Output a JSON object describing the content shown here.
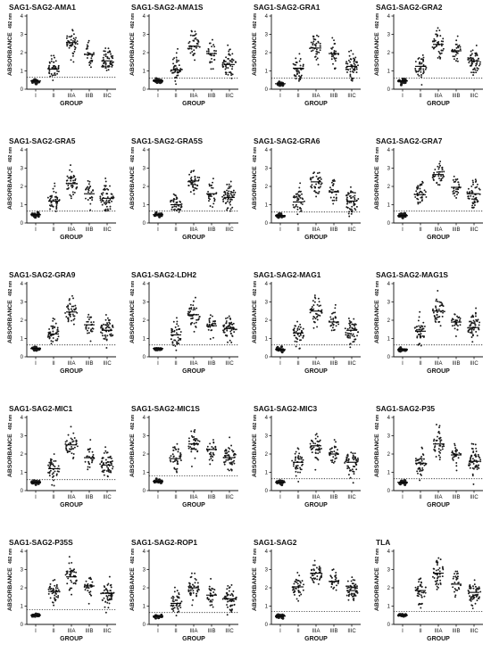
{
  "figure": {
    "y_axis_label": "ABSORBANCE",
    "y_axis_unit": "492 nm",
    "x_axis_label": "GROUP",
    "groups": [
      "I",
      "II",
      "IIIA",
      "IIIB",
      "IIIC"
    ],
    "y_ticks": [
      "0",
      "1",
      "2",
      "3",
      "4"
    ]
  },
  "chart_data": [
    {
      "type": "scatter",
      "title": "SAG1-SAG2-AMA1",
      "xlabel": "GROUP",
      "ylabel": "ABSORBANCE 492 nm",
      "ylim": [
        0,
        4
      ],
      "cutoff": 0.65,
      "categories": [
        "I",
        "II",
        "IIIA",
        "IIIB",
        "IIIC"
      ],
      "group_means": [
        0.45,
        1.1,
        2.55,
        1.9,
        1.55
      ]
    },
    {
      "type": "scatter",
      "title": "SAG1-SAG2-AMA1S",
      "xlabel": "GROUP",
      "ylabel": "ABSORBANCE 492 nm",
      "ylim": [
        0,
        4
      ],
      "cutoff": 0.6,
      "categories": [
        "I",
        "II",
        "IIIA",
        "IIIB",
        "IIIC"
      ],
      "group_means": [
        0.45,
        1.05,
        2.35,
        1.95,
        1.35
      ]
    },
    {
      "type": "scatter",
      "title": "SAG1-SAG2-GRA1",
      "xlabel": "GROUP",
      "ylabel": "ABSORBANCE 492 nm",
      "ylim": [
        0,
        4
      ],
      "cutoff": 0.6,
      "categories": [
        "I",
        "II",
        "IIIA",
        "IIIB",
        "IIIC"
      ],
      "group_means": [
        0.3,
        1.15,
        2.25,
        1.95,
        1.25
      ]
    },
    {
      "type": "scatter",
      "title": "SAG1-SAG2-GRA2",
      "xlabel": "GROUP",
      "ylabel": "ABSORBANCE 492 nm",
      "ylim": [
        0,
        4
      ],
      "cutoff": 0.6,
      "categories": [
        "I",
        "II",
        "IIIA",
        "IIIB",
        "IIIC"
      ],
      "group_means": [
        0.45,
        1.25,
        2.45,
        2.1,
        1.55
      ]
    },
    {
      "type": "scatter",
      "title": "SAG1-SAG2-GRA5",
      "xlabel": "GROUP",
      "ylabel": "ABSORBANCE 492 nm",
      "ylim": [
        0,
        4
      ],
      "cutoff": 0.65,
      "categories": [
        "I",
        "II",
        "IIIA",
        "IIIB",
        "IIIC"
      ],
      "group_means": [
        0.45,
        1.2,
        2.15,
        1.6,
        1.35
      ]
    },
    {
      "type": "scatter",
      "title": "SAG1-SAG2-GRA5S",
      "xlabel": "GROUP",
      "ylabel": "ABSORBANCE 492 nm",
      "ylim": [
        0,
        4
      ],
      "cutoff": 0.65,
      "categories": [
        "I",
        "II",
        "IIIA",
        "IIIB",
        "IIIC"
      ],
      "group_means": [
        0.45,
        1.0,
        2.3,
        1.6,
        1.4
      ]
    },
    {
      "type": "scatter",
      "title": "SAG1-SAG2-GRA6",
      "xlabel": "GROUP",
      "ylabel": "ABSORBANCE 492 nm",
      "ylim": [
        0,
        4
      ],
      "cutoff": 0.6,
      "categories": [
        "I",
        "II",
        "IIIA",
        "IIIB",
        "IIIC"
      ],
      "group_means": [
        0.4,
        1.15,
        2.25,
        1.7,
        1.2
      ]
    },
    {
      "type": "scatter",
      "title": "SAG1-SAG2-GRA7",
      "xlabel": "GROUP",
      "ylabel": "ABSORBANCE 492 nm",
      "ylim": [
        0,
        4
      ],
      "cutoff": 0.65,
      "categories": [
        "I",
        "II",
        "IIIA",
        "IIIB",
        "IIIC"
      ],
      "group_means": [
        0.4,
        1.55,
        2.65,
        1.95,
        1.6
      ]
    },
    {
      "type": "scatter",
      "title": "SAG1-SAG2-GRA9",
      "xlabel": "GROUP",
      "ylabel": "ABSORBANCE 492 nm",
      "ylim": [
        0,
        4
      ],
      "cutoff": 0.65,
      "categories": [
        "I",
        "II",
        "IIIA",
        "IIIB",
        "IIIC"
      ],
      "group_means": [
        0.45,
        1.25,
        2.45,
        1.75,
        1.45
      ]
    },
    {
      "type": "scatter",
      "title": "SAG1-SAG2-LDH2",
      "xlabel": "GROUP",
      "ylabel": "ABSORBANCE 492 nm",
      "ylim": [
        0,
        4
      ],
      "cutoff": 0.65,
      "categories": [
        "I",
        "II",
        "IIIA",
        "IIIB",
        "IIIC"
      ],
      "group_means": [
        0.45,
        1.2,
        2.3,
        1.7,
        1.55
      ]
    },
    {
      "type": "scatter",
      "title": "SAG1-SAG2-MAG1",
      "xlabel": "GROUP",
      "ylabel": "ABSORBANCE 492 nm",
      "ylim": [
        0,
        4
      ],
      "cutoff": 0.65,
      "categories": [
        "I",
        "II",
        "IIIA",
        "IIIB",
        "IIIC"
      ],
      "group_means": [
        0.4,
        1.3,
        2.5,
        1.9,
        1.45
      ]
    },
    {
      "type": "scatter",
      "title": "SAG1-SAG2-MAG1S",
      "xlabel": "GROUP",
      "ylabel": "ABSORBANCE 492 nm",
      "ylim": [
        0,
        4
      ],
      "cutoff": 0.65,
      "categories": [
        "I",
        "II",
        "IIIA",
        "IIIB",
        "IIIC"
      ],
      "group_means": [
        0.4,
        1.4,
        2.5,
        1.9,
        1.6
      ]
    },
    {
      "type": "scatter",
      "title": "SAG1-SAG2-MIC1",
      "xlabel": "GROUP",
      "ylabel": "ABSORBANCE 492 nm",
      "ylim": [
        0,
        4
      ],
      "cutoff": 0.6,
      "categories": [
        "I",
        "II",
        "IIIA",
        "IIIB",
        "IIIC"
      ],
      "group_means": [
        0.45,
        1.2,
        2.5,
        1.8,
        1.4
      ]
    },
    {
      "type": "scatter",
      "title": "SAG1-SAG2-MIC1S",
      "xlabel": "GROUP",
      "ylabel": "ABSORBANCE 492 nm",
      "ylim": [
        0,
        4
      ],
      "cutoff": 0.8,
      "categories": [
        "I",
        "II",
        "IIIA",
        "IIIB",
        "IIIC"
      ],
      "group_means": [
        0.5,
        1.75,
        2.55,
        2.25,
        1.8
      ]
    },
    {
      "type": "scatter",
      "title": "SAG1-SAG2-MIC3",
      "xlabel": "GROUP",
      "ylabel": "ABSORBANCE 492 nm",
      "ylim": [
        0,
        4
      ],
      "cutoff": 0.65,
      "categories": [
        "I",
        "II",
        "IIIA",
        "IIIB",
        "IIIC"
      ],
      "group_means": [
        0.45,
        1.55,
        2.45,
        2.0,
        1.55
      ]
    },
    {
      "type": "scatter",
      "title": "SAG1-SAG2-P35",
      "xlabel": "GROUP",
      "ylabel": "ABSORBANCE 492 nm",
      "ylim": [
        0,
        4
      ],
      "cutoff": 0.65,
      "categories": [
        "I",
        "II",
        "IIIA",
        "IIIB",
        "IIIC"
      ],
      "group_means": [
        0.45,
        1.5,
        2.55,
        1.95,
        1.6
      ]
    },
    {
      "type": "scatter",
      "title": "SAG1-SAG2-P35S",
      "xlabel": "GROUP",
      "ylabel": "ABSORBANCE 492 nm",
      "ylim": [
        0,
        4
      ],
      "cutoff": 0.8,
      "categories": [
        "I",
        "II",
        "IIIA",
        "IIIB",
        "IIIC"
      ],
      "group_means": [
        0.5,
        1.8,
        2.6,
        2.1,
        1.7
      ]
    },
    {
      "type": "scatter",
      "title": "SAG1-SAG2-ROP1",
      "xlabel": "GROUP",
      "ylabel": "ABSORBANCE 492 nm",
      "ylim": [
        0,
        4
      ],
      "cutoff": 0.65,
      "categories": [
        "I",
        "II",
        "IIIA",
        "IIIB",
        "IIIC"
      ],
      "group_means": [
        0.45,
        1.15,
        2.0,
        1.6,
        1.4
      ]
    },
    {
      "type": "scatter",
      "title": "SAG1-SAG2",
      "xlabel": "GROUP",
      "ylabel": "ABSORBANCE 492 nm",
      "ylim": [
        0,
        4
      ],
      "cutoff": 0.7,
      "categories": [
        "I",
        "II",
        "IIIA",
        "IIIB",
        "IIIC"
      ],
      "group_means": [
        0.45,
        2.05,
        2.8,
        2.35,
        1.85
      ]
    },
    {
      "type": "scatter",
      "title": "TLA",
      "xlabel": "GROUP",
      "ylabel": "ABSORBANCE 492 nm",
      "ylim": [
        0,
        4
      ],
      "cutoff": 0.7,
      "categories": [
        "I",
        "II",
        "IIIA",
        "IIIB",
        "IIIC"
      ],
      "group_means": [
        0.5,
        1.85,
        2.8,
        2.2,
        1.75
      ]
    }
  ]
}
